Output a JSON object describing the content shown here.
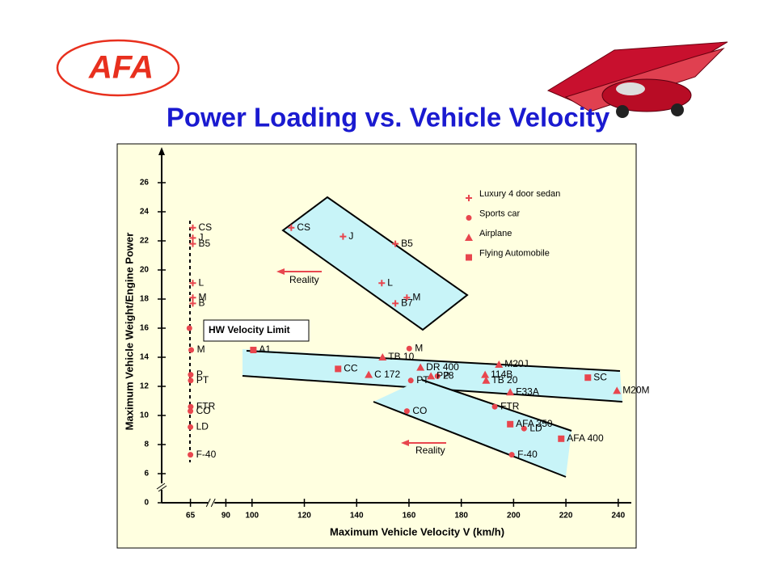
{
  "logo": "AFA",
  "chart_data": {
    "type": "scatter",
    "title": "Power Loading vs. Vehicle Velocity",
    "x_label": "Maximum Vehicle Velocity V (km/h)",
    "y_label": "Maximum Vehicle Weight/Engine Power",
    "xlim": [
      54,
      245
    ],
    "xbreak": [
      72,
      85
    ],
    "ylim": [
      0,
      28
    ],
    "ybreak": [
      1,
      5
    ],
    "xticks": [
      65,
      90,
      100,
      120,
      140,
      160,
      180,
      200,
      220,
      240
    ],
    "yticks": [
      0,
      6,
      8,
      10,
      12,
      14,
      16,
      18,
      20,
      22,
      24,
      26
    ],
    "legend": "top-right",
    "series": [
      {
        "name": "Luxury 4 door sedan",
        "color": "#e8464e",
        "marker": "plus",
        "x": [
          65.9,
          65.9,
          65.9,
          65.9,
          65.9,
          65.9,
          115,
          134.8,
          154.8,
          149.6,
          159.2,
          154.8
        ],
        "values": [
          22.9,
          22.2,
          21.8,
          19.1,
          18.1,
          17.7,
          22.9,
          22.3,
          21.8,
          19.1,
          18.1,
          17.7
        ],
        "labels": [
          "CS",
          "J",
          "B5",
          "L",
          "M",
          "B",
          "CS",
          "J",
          "B5",
          "L",
          "M",
          "B7"
        ]
      },
      {
        "name": "Sports car",
        "color": "#e8464e",
        "marker": "circle",
        "x": [
          64.6,
          65.3,
          65.1,
          65.1,
          65.1,
          65,
          65,
          65,
          160.1,
          160.7,
          170.9,
          159.2,
          192.8,
          204,
          199.3
        ],
        "values": [
          16,
          14.5,
          12.8,
          12.4,
          10.6,
          10.3,
          9.2,
          7.3,
          14.6,
          12.4,
          12.7,
          10.3,
          10.6,
          9.1,
          7.3
        ],
        "labels": [
          null,
          "M",
          "P",
          "PT",
          "FTR",
          "CO",
          "LD",
          "F-40",
          "M",
          "PT",
          "P",
          "CO",
          "FTR",
          "LD",
          "F-40"
        ]
      },
      {
        "name": "Airplane",
        "color": "#e8464e",
        "marker": "triangle",
        "x": [
          149.9,
          144.6,
          164.4,
          168.4,
          189.1,
          189.5,
          194.4,
          198.7,
          239.5
        ],
        "values": [
          14,
          12.8,
          13.3,
          12.7,
          12.8,
          12.4,
          13.5,
          11.6,
          11.7
        ],
        "labels": [
          "TB 10",
          "C 172",
          "DR 400",
          "P28",
          "114B",
          "TB 20",
          "M20J",
          "F33A",
          "M20M"
        ]
      },
      {
        "name": "Flying Automobile",
        "color": "#e8464e",
        "marker": "square",
        "x": [
          100.5,
          132.9,
          228.4,
          198.7,
          218.2
        ],
        "values": [
          14.5,
          13.2,
          12.6,
          9.4,
          8.4
        ],
        "labels": [
          "A1",
          "CC",
          "SC",
          "AFA 350",
          "AFA 400"
        ]
      }
    ],
    "annotations": [
      "HW Velocity Limit",
      "Reality",
      "Reality"
    ]
  }
}
